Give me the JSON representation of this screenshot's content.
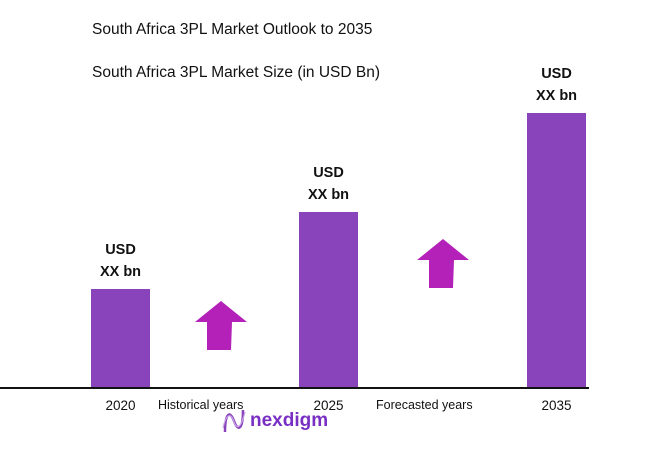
{
  "title": "South Africa 3PL Market Outlook to 2035",
  "chart_data": {
    "type": "bar",
    "title": "South Africa 3PL Market Size (in USD Bn)",
    "categories": [
      "2020",
      "2025",
      "2035"
    ],
    "relative_values": [
      0.36,
      0.64,
      1.0
    ],
    "data_labels": [
      [
        "USD",
        "XX bn"
      ],
      [
        "USD",
        "XX bn"
      ],
      [
        "USD",
        "XX bn"
      ]
    ],
    "annotations": [
      "Historical years",
      "Forecasted years"
    ],
    "grid": false,
    "colors": {
      "bar": "#8a44bb",
      "arrow": "#b321b8"
    }
  },
  "logo": {
    "text": "nexdigm"
  }
}
